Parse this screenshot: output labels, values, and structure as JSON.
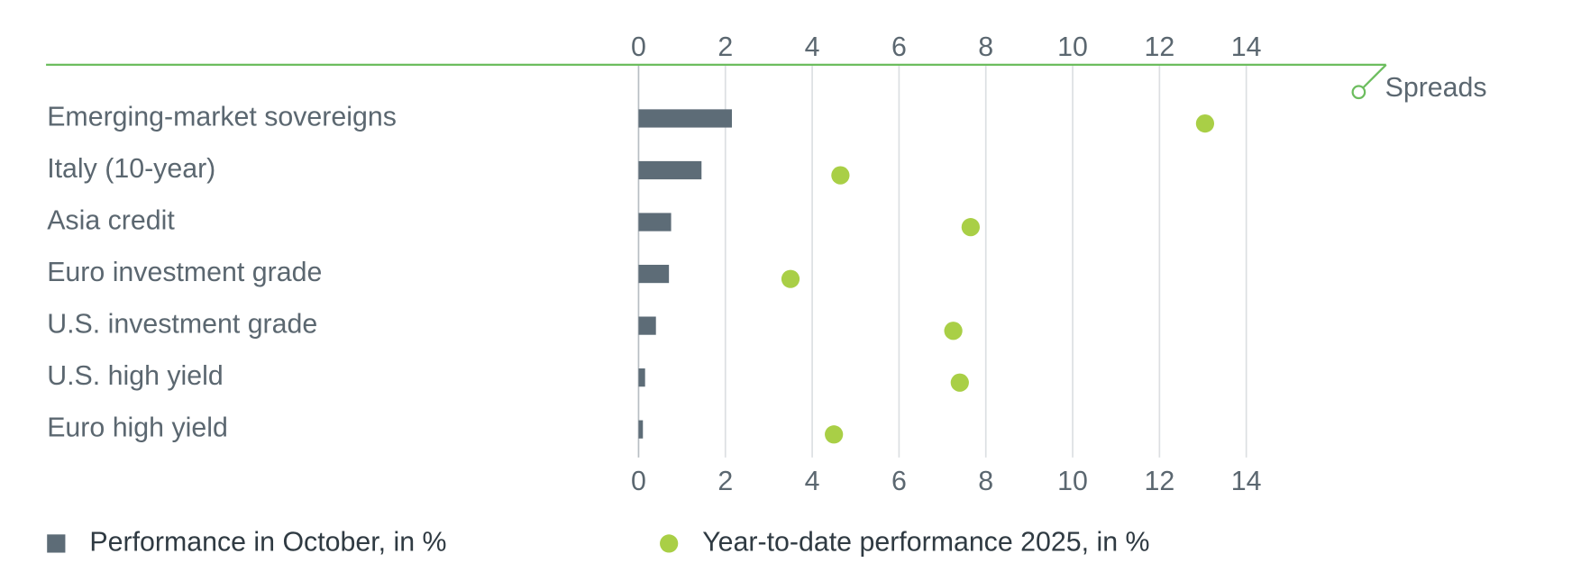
{
  "chart_data": {
    "type": "bar",
    "orientation": "horizontal",
    "categories": [
      "Emerging-market sovereigns",
      "Italy (10-year)",
      "Asia credit",
      "Euro investment grade",
      "U.S. investment grade",
      "U.S. high yield",
      "Euro high yield"
    ],
    "series": [
      {
        "name": "Performance in October, in %",
        "type": "bar",
        "color": "#5d6c77",
        "values": [
          2.15,
          1.45,
          0.75,
          0.7,
          0.4,
          0.15,
          0.1
        ]
      },
      {
        "name": "Year-to-date performance 2025, in %",
        "type": "scatter",
        "color": "#a9cf46",
        "values": [
          13.05,
          4.65,
          7.65,
          3.5,
          7.25,
          7.4,
          4.5
        ]
      }
    ],
    "annotation": "Spreads",
    "xlim": [
      0,
      14
    ],
    "xticks": [
      0,
      2,
      4,
      6,
      8,
      10,
      12,
      14
    ],
    "grid": true,
    "legend": "bottom"
  }
}
